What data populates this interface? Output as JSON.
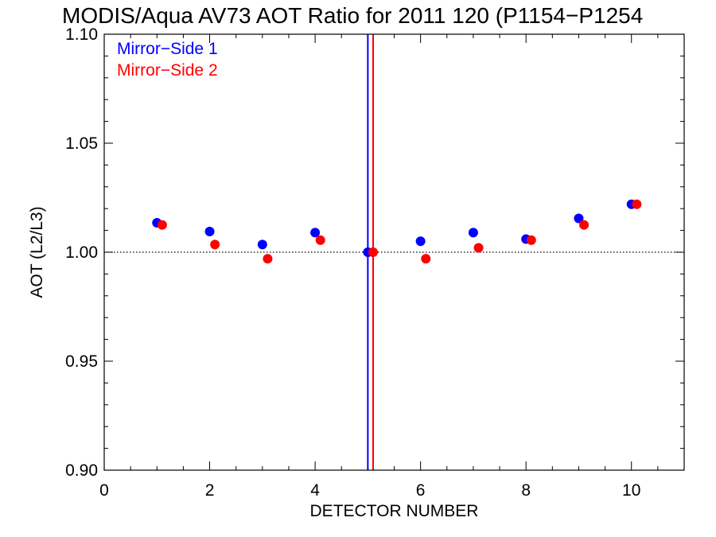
{
  "chart_data": {
    "type": "scatter",
    "title": "MODIS/Aqua AV73 AOT Ratio for 2011 120 (P1154−P1254",
    "xlabel": "DETECTOR NUMBER",
    "ylabel": "AOT (L2/L3)",
    "xlim": [
      0,
      11
    ],
    "ylim": [
      0.9,
      1.1
    ],
    "x_ticks": [
      0,
      2,
      4,
      6,
      8,
      10
    ],
    "y_ticks": [
      0.9,
      0.95,
      1.0,
      1.05,
      1.1
    ],
    "x_tick_labels": [
      "0",
      "2",
      "4",
      "6",
      "8",
      "10"
    ],
    "y_tick_labels": [
      "0.90",
      "0.95",
      "1.00",
      "1.05",
      "1.10"
    ],
    "reference_line_y": 1.0,
    "legend_position": "top-left",
    "series": [
      {
        "name": "Mirror−Side 1",
        "color": "#0000ff",
        "x": [
          1,
          2,
          3,
          4,
          5,
          6,
          7,
          8,
          9,
          10
        ],
        "y": [
          1.0135,
          1.0095,
          1.0035,
          1.009,
          1.0,
          1.005,
          1.009,
          1.006,
          1.0155,
          1.022
        ],
        "vertical_line_x": 5.0
      },
      {
        "name": "Mirror−Side 2",
        "color": "#ff0000",
        "x": [
          1.1,
          2.1,
          3.1,
          4.1,
          5.1,
          6.1,
          7.1,
          8.1,
          9.1,
          10.1
        ],
        "y": [
          1.0125,
          1.0035,
          0.997,
          1.0055,
          1.0,
          0.997,
          1.002,
          1.0055,
          1.0125,
          1.022
        ],
        "vertical_line_x": 5.1
      }
    ]
  }
}
